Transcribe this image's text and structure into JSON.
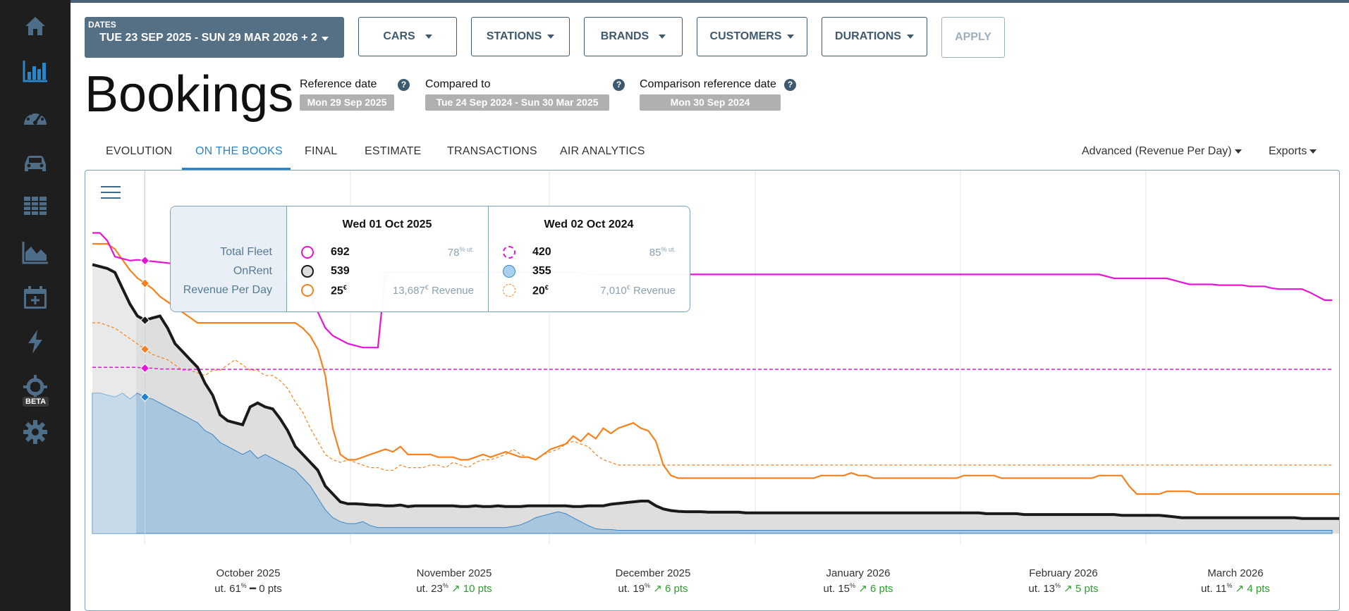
{
  "sidebar": {
    "items": [
      {
        "icon": "home-icon"
      },
      {
        "icon": "bar-chart-icon"
      },
      {
        "icon": "dashboard-gauge-icon"
      },
      {
        "icon": "car-icon"
      },
      {
        "icon": "table-icon"
      },
      {
        "icon": "area-chart-icon"
      },
      {
        "icon": "calendar-plus-icon"
      },
      {
        "icon": "lightning-icon"
      },
      {
        "icon": "crosshair-icon"
      },
      {
        "icon": "gear-icon"
      }
    ],
    "beta_label": "BETA"
  },
  "filters": {
    "dates_label": "DATES",
    "dates_value": "TUE 23 SEP 2025 - SUN 29 MAR 2026 + 2",
    "cars": "CARS",
    "stations": "STATIONS",
    "brands": "BRANDS",
    "customers": "CUSTOMERS",
    "durations": "DURATIONS",
    "apply": "APPLY"
  },
  "header": {
    "title": "Bookings",
    "reference_date_label": "Reference date",
    "reference_date": "Mon 29 Sep 2025",
    "compared_to_label": "Compared to",
    "compared_to": "Tue 24 Sep 2024 - Sun 30 Mar 2025",
    "comparison_reference_label": "Comparison reference date",
    "comparison_reference": "Mon 30 Sep 2024",
    "help_glyph": "?"
  },
  "tabs": [
    "EVOLUTION",
    "ON THE BOOKS",
    "FINAL",
    "ESTIMATE",
    "TRANSACTIONS",
    "AIR ANALYTICS"
  ],
  "active_tab": "ON THE BOOKS",
  "right_menus": {
    "mode": "Advanced (Revenue Per Day)",
    "exports": "Exports"
  },
  "colors": {
    "fleet": "#e614d6",
    "onrent": "#1a1a1a",
    "revenue": "#f7801f",
    "onrent_fill_prev": "#a9c6df",
    "accent": "#2a86c8",
    "gray_fill": "#dcdcdc"
  },
  "tooltip": {
    "row_labels": [
      "Total Fleet",
      "OnRent",
      "Revenue Per Day"
    ],
    "current": {
      "date": "Wed 01 Oct 2025",
      "fleet": "692",
      "fleet_extra": "78",
      "fleet_extra_unit": "% ut.",
      "onrent": "539",
      "revenue": "25",
      "revenue_unit": "€",
      "revenue_extra": "13,687",
      "revenue_extra_unit": "€ Revenue"
    },
    "previous": {
      "date": "Wed 02 Oct 2024",
      "fleet": "420",
      "fleet_extra": "85",
      "fleet_extra_unit": "% ut.",
      "onrent": "355",
      "revenue": "20",
      "revenue_unit": "€",
      "revenue_extra": "7,010",
      "revenue_extra_unit": "€ Revenue"
    }
  },
  "months": [
    {
      "name": "October 2025",
      "ut": "ut. 61",
      "delta": "0 pts",
      "trend": "flat"
    },
    {
      "name": "November 2025",
      "ut": "ut. 23",
      "delta": "10 pts",
      "trend": "up"
    },
    {
      "name": "December 2025",
      "ut": "ut. 19",
      "delta": "6 pts",
      "trend": "up"
    },
    {
      "name": "January 2026",
      "ut": "ut. 15",
      "delta": "6 pts",
      "trend": "up"
    },
    {
      "name": "February 2026",
      "ut": "ut. 13",
      "delta": "5 pts",
      "trend": "up"
    },
    {
      "name": "March 2026",
      "ut": "ut. 11",
      "delta": "4 pts",
      "trend": "up"
    }
  ],
  "pct_sign": "%",
  "chart_data": {
    "type": "line",
    "x_start": "2025-09-23",
    "x_end": "2026-03-29",
    "series": [
      {
        "name": "Total Fleet",
        "period": "current",
        "style": "solid",
        "values": [
          760,
          760,
          740,
          700,
          695,
          690,
          692,
          690,
          688,
          686,
          684,
          682,
          680,
          678,
          676,
          674,
          672,
          668,
          666,
          664,
          662,
          660,
          658,
          656,
          654,
          652,
          650,
          640,
          620,
          600,
          560,
          520,
          500,
          490,
          480,
          475,
          470,
          470,
          470,
          660,
          660,
          660,
          660,
          660,
          660,
          660,
          660,
          660,
          660,
          660,
          660,
          660,
          660,
          660,
          660,
          660,
          660,
          660,
          660,
          660,
          660,
          660,
          660,
          660,
          660,
          660,
          655,
          655,
          655,
          655,
          655,
          655,
          655,
          655,
          655,
          655,
          655,
          655,
          655,
          655,
          655,
          655,
          655,
          655,
          655,
          655,
          655,
          655,
          655,
          655,
          655,
          655,
          655,
          655,
          655,
          655,
          655,
          655,
          655,
          655,
          655,
          655,
          655,
          655,
          655,
          655,
          655,
          655,
          655,
          655,
          655,
          655,
          655,
          655,
          655,
          655,
          655,
          655,
          655,
          655,
          655,
          655,
          655,
          655,
          655,
          655,
          655,
          655,
          655,
          655,
          655,
          655,
          655,
          655,
          655,
          650,
          645,
          645,
          645,
          645,
          645,
          645,
          645,
          645,
          640,
          635,
          630,
          630,
          630,
          630,
          628,
          628,
          628,
          628,
          625,
          625,
          625,
          620,
          618,
          618,
          618,
          618,
          610,
          600,
          590,
          590
        ]
      },
      {
        "name": "Total Fleet",
        "period": "previous",
        "style": "dashed",
        "values": [
          420,
          420,
          420,
          420,
          420,
          420,
          420,
          418,
          418,
          416,
          416,
          416,
          415,
          415,
          415,
          415,
          415,
          415,
          415,
          415,
          415,
          415,
          415,
          415,
          415,
          415,
          415,
          415,
          415,
          415,
          415,
          415,
          415,
          415,
          415,
          415,
          415,
          415,
          415,
          415,
          415,
          415,
          415,
          415,
          415,
          415,
          415,
          415,
          415,
          415,
          415,
          415,
          415,
          415,
          415,
          415,
          415,
          415,
          415,
          415,
          415,
          415,
          415,
          415,
          415,
          415,
          415,
          415,
          415,
          415,
          415,
          415,
          415,
          415,
          415,
          415,
          415,
          415,
          415,
          415,
          415,
          415,
          415,
          415,
          415,
          415,
          415,
          415,
          415,
          415,
          415,
          415,
          415,
          415,
          415,
          415,
          415,
          415,
          415,
          415,
          415,
          415,
          415,
          415,
          415,
          415,
          415,
          415,
          415,
          415,
          415,
          415,
          415,
          415,
          415,
          415,
          415,
          415,
          415,
          415,
          415,
          415,
          415,
          415,
          415,
          415,
          415,
          415,
          415,
          415,
          415,
          415,
          415,
          415,
          415,
          415,
          415,
          415,
          415,
          415,
          415,
          415,
          415,
          415,
          415,
          415,
          415,
          415,
          415,
          415,
          415,
          415,
          415,
          415,
          415,
          415,
          415,
          415,
          415,
          415,
          415,
          415,
          415,
          415,
          415,
          415
        ]
      },
      {
        "name": "OnRent",
        "period": "current",
        "style": "solid",
        "values": [
          680,
          675,
          670,
          660,
          620,
          580,
          550,
          539,
          545,
          550,
          520,
          480,
          460,
          440,
          420,
          380,
          350,
          300,
          285,
          280,
          275,
          320,
          330,
          320,
          315,
          290,
          260,
          220,
          200,
          180,
          160,
          120,
          100,
          80,
          75,
          75,
          74,
          72,
          72,
          70,
          70,
          72,
          68,
          70,
          70,
          70,
          70,
          70,
          70,
          68,
          68,
          70,
          68,
          68,
          70,
          68,
          68,
          68,
          70,
          70,
          70,
          70,
          70,
          70,
          68,
          68,
          70,
          70,
          70,
          74,
          76,
          78,
          80,
          82,
          82,
          70,
          62,
          58,
          56,
          55,
          55,
          55,
          54,
          54,
          54,
          54,
          54,
          52,
          52,
          52,
          52,
          52,
          52,
          52,
          52,
          52,
          52,
          52,
          52,
          52,
          52,
          52,
          52,
          52,
          52,
          52,
          52,
          52,
          52,
          52,
          52,
          52,
          52,
          52,
          52,
          52,
          52,
          52,
          52,
          50,
          50,
          50,
          50,
          50,
          48,
          48,
          48,
          48,
          48,
          48,
          48,
          48,
          48,
          48,
          48,
          48,
          48,
          46,
          46,
          46,
          46,
          46,
          46,
          44,
          42,
          40,
          40,
          40,
          40,
          40,
          40,
          40,
          40,
          40,
          40,
          40,
          40,
          40,
          40,
          40,
          40,
          38,
          38,
          38,
          38,
          38,
          38,
          38,
          38,
          38
        ]
      },
      {
        "name": "OnRent",
        "period": "previous",
        "style": "area",
        "values": [
          355,
          355,
          350,
          345,
          355,
          340,
          355,
          345,
          340,
          330,
          320,
          310,
          300,
          290,
          280,
          260,
          250,
          230,
          220,
          210,
          200,
          210,
          190,
          200,
          190,
          180,
          170,
          160,
          140,
          120,
          90,
          60,
          40,
          30,
          25,
          25,
          30,
          20,
          15,
          15,
          15,
          15,
          15,
          15,
          15,
          15,
          15,
          15,
          15,
          15,
          15,
          15,
          15,
          15,
          15,
          15,
          18,
          22,
          30,
          40,
          45,
          50,
          55,
          50,
          40,
          30,
          20,
          12,
          10,
          10,
          8,
          8,
          8,
          8,
          8,
          8,
          8,
          8,
          8,
          8,
          8,
          8,
          8,
          8,
          8,
          8,
          8,
          8,
          8,
          8,
          8,
          8,
          8,
          8,
          8,
          8,
          8,
          8,
          8,
          8,
          8,
          8,
          8,
          8,
          8,
          8,
          8,
          8,
          8,
          8,
          8,
          8,
          8,
          8,
          8,
          8,
          8,
          8,
          8,
          8,
          8,
          8,
          8,
          8,
          8,
          8,
          8,
          8,
          8,
          8,
          8,
          8,
          8,
          8,
          8,
          8,
          8,
          8,
          8,
          8,
          8,
          8,
          8,
          8,
          8,
          8,
          8,
          8,
          8,
          8,
          8,
          8,
          8,
          8,
          8,
          8,
          8,
          8,
          8,
          8,
          8,
          8,
          8,
          8,
          8,
          8
        ]
      },
      {
        "name": "Revenue Per Day",
        "period": "current",
        "style": "solid",
        "values": [
          110,
          110,
          110,
          108,
          104,
          100,
          97,
          95,
          93,
          90,
          88,
          86,
          84,
          82,
          80,
          80,
          80,
          80,
          80,
          80,
          80,
          80,
          80,
          80,
          80,
          80,
          80,
          80,
          78,
          75,
          70,
          60,
          40,
          30,
          28,
          28,
          29,
          30,
          31,
          32,
          31,
          33,
          30,
          30,
          30,
          30,
          29,
          29,
          29,
          28,
          28,
          29,
          30,
          29,
          30,
          31,
          30,
          29,
          29,
          28,
          30,
          32,
          33,
          34,
          37,
          35,
          38,
          36,
          40,
          38,
          40,
          41,
          42,
          40,
          39,
          35,
          26,
          22,
          21,
          21,
          21,
          21,
          21,
          21,
          21,
          21,
          21,
          21,
          21,
          21,
          21,
          21,
          21,
          21,
          21,
          21,
          21,
          22,
          22,
          22,
          22,
          23,
          22,
          22,
          21,
          21,
          21,
          21,
          21,
          21,
          21,
          21,
          21,
          21,
          21,
          21,
          22,
          22,
          22,
          22,
          22,
          21,
          21,
          21,
          21,
          21,
          21,
          21,
          21,
          21,
          21,
          21,
          21,
          21,
          22,
          22,
          22,
          22,
          18,
          15,
          15,
          15,
          15,
          16,
          16,
          16,
          16,
          15,
          15,
          15,
          15,
          15,
          15,
          15,
          15,
          15,
          15,
          15,
          15,
          15,
          15,
          15,
          15,
          15,
          15,
          15,
          15,
          15,
          16,
          16,
          16,
          16,
          16,
          16,
          17,
          17,
          18,
          18
        ]
      },
      {
        "name": "Revenue Per Day",
        "period": "previous",
        "style": "dashed",
        "values": [
          80,
          80,
          79,
          78,
          76,
          74,
          72,
          70,
          68,
          67,
          66,
          64,
          62,
          62,
          61,
          60,
          62,
          62,
          64,
          66,
          64,
          62,
          62,
          60,
          60,
          58,
          55,
          50,
          46,
          40,
          35,
          30,
          28,
          27,
          28,
          27,
          26,
          25,
          25,
          24,
          24,
          26,
          25,
          25,
          25,
          26,
          26,
          25,
          27,
          26,
          25,
          27,
          28,
          28,
          29,
          30,
          32,
          30,
          29,
          28,
          30,
          31,
          32,
          34,
          35,
          34,
          33,
          30,
          28,
          27,
          26,
          26,
          26,
          26,
          26,
          26,
          26,
          26,
          26,
          26,
          26,
          26,
          26,
          26,
          26,
          26,
          26,
          26,
          26,
          26,
          26,
          26,
          26,
          26,
          26,
          26,
          26,
          26,
          26,
          26,
          26,
          26,
          26,
          26,
          26,
          26,
          26,
          26,
          26,
          26,
          26,
          26,
          26,
          26,
          26,
          26,
          26,
          26,
          26,
          26,
          26,
          26,
          26,
          26,
          26,
          26,
          26,
          26,
          26,
          26,
          26,
          26,
          26,
          26,
          26,
          26,
          26,
          26,
          26,
          26,
          26,
          26,
          26,
          26,
          26,
          26,
          26,
          26,
          26,
          26,
          26,
          26,
          26,
          26,
          26,
          26,
          26,
          26,
          26,
          26,
          26,
          26,
          26,
          26,
          26,
          26
        ]
      }
    ],
    "xlabel": "",
    "ylabel": ""
  }
}
